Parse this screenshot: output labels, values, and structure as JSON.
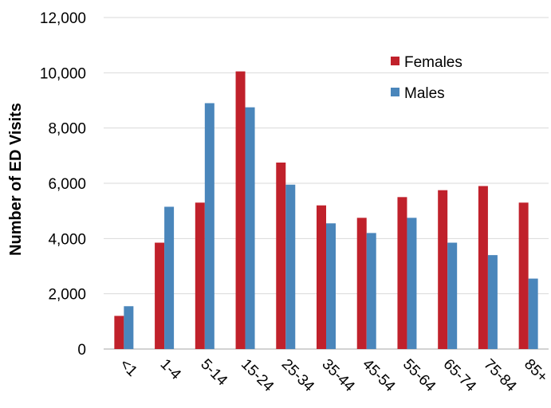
{
  "chart_data": {
    "type": "bar",
    "title": "",
    "xlabel": "",
    "ylabel": "Number of ED Visits",
    "ylim": [
      0,
      12000
    ],
    "yticks": [
      0,
      2000,
      4000,
      6000,
      8000,
      10000,
      12000
    ],
    "ytick_labels": [
      "0",
      "2,000",
      "4,000",
      "6,000",
      "8,000",
      "10,000",
      "12,000"
    ],
    "grid": true,
    "legend_position": "top-right",
    "categories": [
      "<1",
      "1-4",
      "5-14",
      "15-24",
      "25-34",
      "35-44",
      "45-54",
      "55-64",
      "65-74",
      "75-84",
      "85+"
    ],
    "series": [
      {
        "name": "Females",
        "color": "#c0212b",
        "values": [
          1200,
          3850,
          5300,
          10050,
          6750,
          5200,
          4750,
          5500,
          5750,
          5900,
          5300
        ]
      },
      {
        "name": "Males",
        "color": "#4a86bb",
        "values": [
          1550,
          5150,
          8900,
          8750,
          5950,
          4550,
          4200,
          4750,
          3850,
          3400,
          2550
        ]
      }
    ]
  }
}
